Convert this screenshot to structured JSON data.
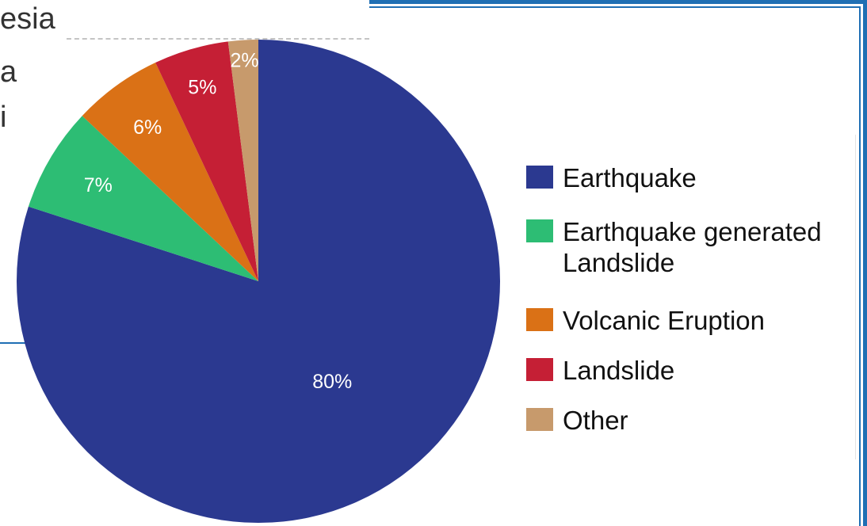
{
  "background_text": {
    "line1": "esia",
    "line2": "a",
    "line3": "i"
  },
  "colors": {
    "frame": "#1f6fb4"
  },
  "chart_data": {
    "type": "pie",
    "categories": [
      "Earthquake",
      "Earthquake generated Landslide",
      "Volcanic Eruption",
      "Landslide",
      "Other"
    ],
    "values": [
      80,
      7,
      6,
      5,
      2
    ],
    "value_labels": [
      "80%",
      "7%",
      "6%",
      "5%",
      "2%"
    ],
    "colors": [
      "#2b3990",
      "#2dbd74",
      "#da7116",
      "#c51f35",
      "#c79a6c"
    ],
    "start": "12 o'clock",
    "direction": "clockwise",
    "legend_position": "right"
  }
}
